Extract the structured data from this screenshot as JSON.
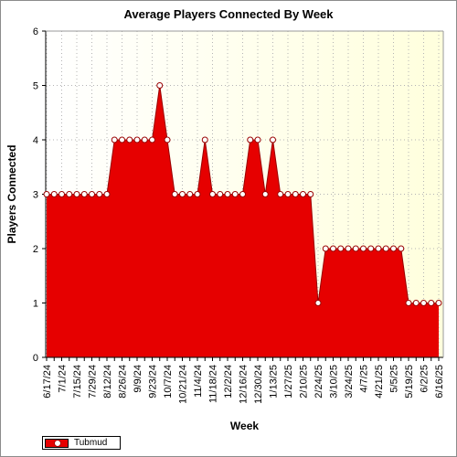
{
  "chart_data": {
    "type": "area",
    "title": "Average Players Connected By Week",
    "xlabel": "Week",
    "ylabel": "Players Connected",
    "ylim": [
      0,
      6
    ],
    "yticks": [
      "0",
      "1",
      "2",
      "3",
      "4",
      "5",
      "6"
    ],
    "grid": true,
    "legend_position": "bottom-left",
    "colors": {
      "area": "#e60000",
      "line": "#990000",
      "marker_fill": "#ffffff",
      "plot_bg_left": "#ffffff",
      "plot_bg_right": "#ffffdd"
    },
    "categories": [
      "6/17/24",
      "6/24/24",
      "7/1/24",
      "7/8/24",
      "7/15/24",
      "7/22/24",
      "7/29/24",
      "8/5/24",
      "8/12/24",
      "8/19/24",
      "8/26/24",
      "9/2/24",
      "9/9/24",
      "9/16/24",
      "9/23/24",
      "9/30/24",
      "10/7/24",
      "10/14/24",
      "10/21/24",
      "10/28/24",
      "11/4/24",
      "11/11/24",
      "11/18/24",
      "11/25/24",
      "12/2/24",
      "12/9/24",
      "12/16/24",
      "12/23/24",
      "12/30/24",
      "1/6/25",
      "1/13/25",
      "1/20/25",
      "1/27/25",
      "2/3/25",
      "2/10/25",
      "2/17/25",
      "2/24/25",
      "3/3/25",
      "3/10/25",
      "3/17/25",
      "3/24/25",
      "3/31/25",
      "4/7/25",
      "4/14/25",
      "4/21/25",
      "4/28/25",
      "5/5/25",
      "5/12/25",
      "5/19/25",
      "5/26/25",
      "6/2/25",
      "6/9/25",
      "6/16/25"
    ],
    "tick_labels": [
      "6/17/24",
      "7/1/24",
      "7/15/24",
      "7/29/24",
      "8/12/24",
      "8/26/24",
      "9/9/24",
      "9/23/24",
      "10/7/24",
      "10/21/24",
      "11/4/24",
      "11/18/24",
      "12/2/24",
      "12/16/24",
      "12/30/24",
      "1/13/25",
      "1/27/25",
      "2/10/25",
      "2/24/25",
      "3/10/25",
      "3/24/25",
      "4/7/25",
      "4/21/25",
      "5/5/25",
      "5/19/25",
      "6/2/25",
      "6/16/25"
    ],
    "series": [
      {
        "name": "Tubmud",
        "values": [
          3,
          3,
          3,
          3,
          3,
          3,
          3,
          3,
          3,
          4,
          4,
          4,
          4,
          4,
          4,
          5,
          4,
          3,
          3,
          3,
          3,
          4,
          3,
          3,
          3,
          3,
          3,
          4,
          4,
          3,
          4,
          3,
          3,
          3,
          3,
          3,
          1,
          2,
          2,
          2,
          2,
          2,
          2,
          2,
          2,
          2,
          2,
          2,
          1,
          1,
          1,
          1,
          1
        ]
      }
    ]
  }
}
